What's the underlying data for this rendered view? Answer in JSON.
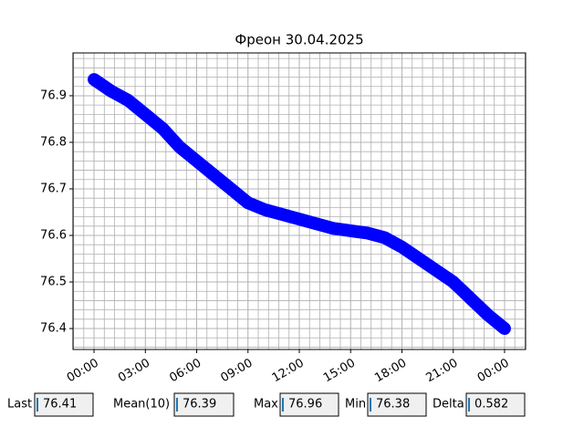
{
  "chart_data": {
    "type": "line",
    "title": "Фреон 30.04.2025",
    "x": [
      0,
      1,
      2,
      3,
      4,
      5,
      6,
      7,
      8,
      9,
      10,
      11,
      12,
      13,
      14,
      15,
      16,
      17,
      18,
      19,
      20,
      21,
      22,
      23,
      24
    ],
    "series": [
      {
        "color": "#0000ff",
        "values": [
          76.935,
          76.91,
          76.89,
          76.86,
          76.83,
          76.79,
          76.76,
          76.73,
          76.7,
          76.67,
          76.655,
          76.645,
          76.635,
          76.625,
          76.615,
          76.61,
          76.605,
          76.595,
          76.575,
          76.55,
          76.525,
          76.5,
          76.465,
          76.43,
          76.4
        ]
      }
    ],
    "xlim": [
      -1.23,
      25.23
    ],
    "xticks": [
      {
        "value": 0,
        "label": "00:00"
      },
      {
        "value": 3,
        "label": "03:00"
      },
      {
        "value": 6,
        "label": "06:00"
      },
      {
        "value": 9,
        "label": "09:00"
      },
      {
        "value": 12,
        "label": "12:00"
      },
      {
        "value": 15,
        "label": "15:00"
      },
      {
        "value": 18,
        "label": "18:00"
      },
      {
        "value": 21,
        "label": "21:00"
      },
      {
        "value": 24,
        "label": "00:00"
      }
    ],
    "ylim": [
      76.355,
      76.992
    ],
    "yticks": [
      76.4,
      76.5,
      76.6,
      76.7,
      76.8,
      76.9
    ],
    "grid": true,
    "xminor_step": 0.6,
    "yminor_step": 0.02
  },
  "fields": [
    {
      "label": "Last",
      "value": 76.41
    },
    {
      "label": "Mean(10)",
      "value": 76.39
    },
    {
      "label": "Max",
      "value": 76.96
    },
    {
      "label": "Min",
      "value": 76.38
    },
    {
      "label": "Delta",
      "value": 0.582
    }
  ]
}
